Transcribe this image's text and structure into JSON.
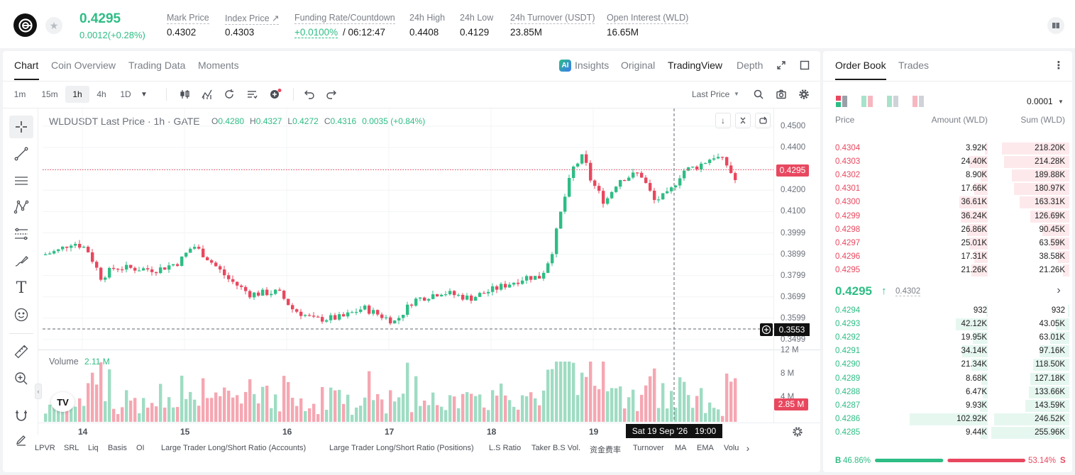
{
  "ticker": {
    "last_price": "0.4295",
    "change": "0.0012(+0.28%)",
    "stats": [
      {
        "label": "Mark Price",
        "value": "0.4302"
      },
      {
        "label": "Index Price ↗",
        "value": "0.4303"
      },
      {
        "label": "Funding Rate/Countdown",
        "value": "+0.0100%",
        "extra": "/ 06:12:47"
      },
      {
        "label": "24h High",
        "value": "0.4408"
      },
      {
        "label": "24h Low",
        "value": "0.4129"
      },
      {
        "label": "24h Turnover (USDT)",
        "value": "23.85M"
      },
      {
        "label": "Open Interest (WLD)",
        "value": "16.65M"
      }
    ]
  },
  "chart_tabs": [
    "Chart",
    "Coin Overview",
    "Trading Data",
    "Moments"
  ],
  "chart_views": {
    "insights": "Insights",
    "original": "Original",
    "tradingview": "TradingView",
    "depth": "Depth"
  },
  "timeframes": [
    "1m",
    "15m",
    "1h",
    "4h",
    "1D"
  ],
  "price_source": "Last Price",
  "chart_header": {
    "symbol": "WLDUSDT Last Price · 1h · GATE",
    "o_label": "O",
    "o": "0.4280",
    "h_label": "H",
    "h": "0.4327",
    "l_label": "L",
    "l": "0.4272",
    "c_label": "C",
    "c": "0.4316",
    "change": "0.0035 (+0.84%)"
  },
  "volume_header": {
    "label": "Volume",
    "value": "2.11 M"
  },
  "current_price_tag": "0.4295",
  "crosshair_price_tag": "0.3553",
  "volume_tag": "2.85 M",
  "crosshair_time": "Sat 19 Sep '26   19:00",
  "price_axis": [
    "0.4500",
    "0.4400",
    "0.4300",
    "0.4200",
    "0.4100",
    "0.3999",
    "0.3899",
    "0.3799",
    "0.3699",
    "0.3599",
    "0.3499"
  ],
  "volume_axis": [
    "12 M",
    "8 M",
    "4 M"
  ],
  "x_axis": [
    "14",
    "15",
    "16",
    "17",
    "18",
    "19"
  ],
  "indicators": [
    "LPVR",
    "SRL",
    "Liq",
    "Basis",
    "OI",
    "Large Trader Long/Short Ratio (Accounts)",
    "Large Trader Long/Short Ratio (Positions)",
    "L.S Ratio",
    "Taker B.S Vol.",
    "资金费率",
    "Turnover",
    "MA",
    "EMA",
    "Volu"
  ],
  "orderbook": {
    "tabs": [
      "Order Book",
      "Trades"
    ],
    "precision": "0.0001",
    "columns": [
      "Price",
      "Amount (WLD)",
      "Sum (WLD)"
    ],
    "asks": [
      {
        "price": "0.4304",
        "amount": "3.92K",
        "sum": "218.20K",
        "amt_frac": 0.04,
        "sum_frac": 0.86
      },
      {
        "price": "0.4303",
        "amount": "24.40K",
        "sum": "214.28K",
        "amt_frac": 0.24,
        "sum_frac": 0.84
      },
      {
        "price": "0.4302",
        "amount": "8.90K",
        "sum": "189.88K",
        "amt_frac": 0.09,
        "sum_frac": 0.74
      },
      {
        "price": "0.4301",
        "amount": "17.66K",
        "sum": "180.97K",
        "amt_frac": 0.17,
        "sum_frac": 0.71
      },
      {
        "price": "0.4300",
        "amount": "36.61K",
        "sum": "163.31K",
        "amt_frac": 0.36,
        "sum_frac": 0.64
      },
      {
        "price": "0.4299",
        "amount": "36.24K",
        "sum": "126.69K",
        "amt_frac": 0.35,
        "sum_frac": 0.5
      },
      {
        "price": "0.4298",
        "amount": "26.86K",
        "sum": "90.45K",
        "amt_frac": 0.26,
        "sum_frac": 0.35
      },
      {
        "price": "0.4297",
        "amount": "25.01K",
        "sum": "63.59K",
        "amt_frac": 0.24,
        "sum_frac": 0.25
      },
      {
        "price": "0.4296",
        "amount": "17.31K",
        "sum": "38.58K",
        "amt_frac": 0.17,
        "sum_frac": 0.15
      },
      {
        "price": "0.4295",
        "amount": "21.26K",
        "sum": "21.26K",
        "amt_frac": 0.21,
        "sum_frac": 0.08
      }
    ],
    "mid_price": "0.4295",
    "mid_arrow": "↑",
    "mid_mark": "0.4302",
    "bids": [
      {
        "price": "0.4294",
        "amount": "932",
        "sum": "932",
        "amt_frac": 0.01,
        "sum_frac": 0.004
      },
      {
        "price": "0.4293",
        "amount": "42.12K",
        "sum": "43.05K",
        "amt_frac": 0.41,
        "sum_frac": 0.17
      },
      {
        "price": "0.4292",
        "amount": "19.95K",
        "sum": "63.01K",
        "amt_frac": 0.19,
        "sum_frac": 0.25
      },
      {
        "price": "0.4291",
        "amount": "34.14K",
        "sum": "97.16K",
        "amt_frac": 0.33,
        "sum_frac": 0.38
      },
      {
        "price": "0.4290",
        "amount": "21.34K",
        "sum": "118.50K",
        "amt_frac": 0.21,
        "sum_frac": 0.46
      },
      {
        "price": "0.4289",
        "amount": "8.68K",
        "sum": "127.18K",
        "amt_frac": 0.08,
        "sum_frac": 0.5
      },
      {
        "price": "0.4288",
        "amount": "6.47K",
        "sum": "133.66K",
        "amt_frac": 0.06,
        "sum_frac": 0.52
      },
      {
        "price": "0.4287",
        "amount": "9.93K",
        "sum": "143.59K",
        "amt_frac": 0.1,
        "sum_frac": 0.56
      },
      {
        "price": "0.4286",
        "amount": "102.92K",
        "sum": "246.52K",
        "amt_frac": 1.0,
        "sum_frac": 0.96
      },
      {
        "price": "0.4285",
        "amount": "9.44K",
        "sum": "255.96K",
        "amt_frac": 0.09,
        "sum_frac": 1.0
      }
    ],
    "buy_ratio_label": "B",
    "buy_ratio": "46.86%",
    "sell_ratio": "53.14%",
    "sell_ratio_label": "S",
    "buy_frac": 0.4686
  },
  "colors": {
    "up": "#2ebd85",
    "down": "#e8485f",
    "up_light": "#e6f7f0",
    "down_light": "#fde9ec"
  }
}
